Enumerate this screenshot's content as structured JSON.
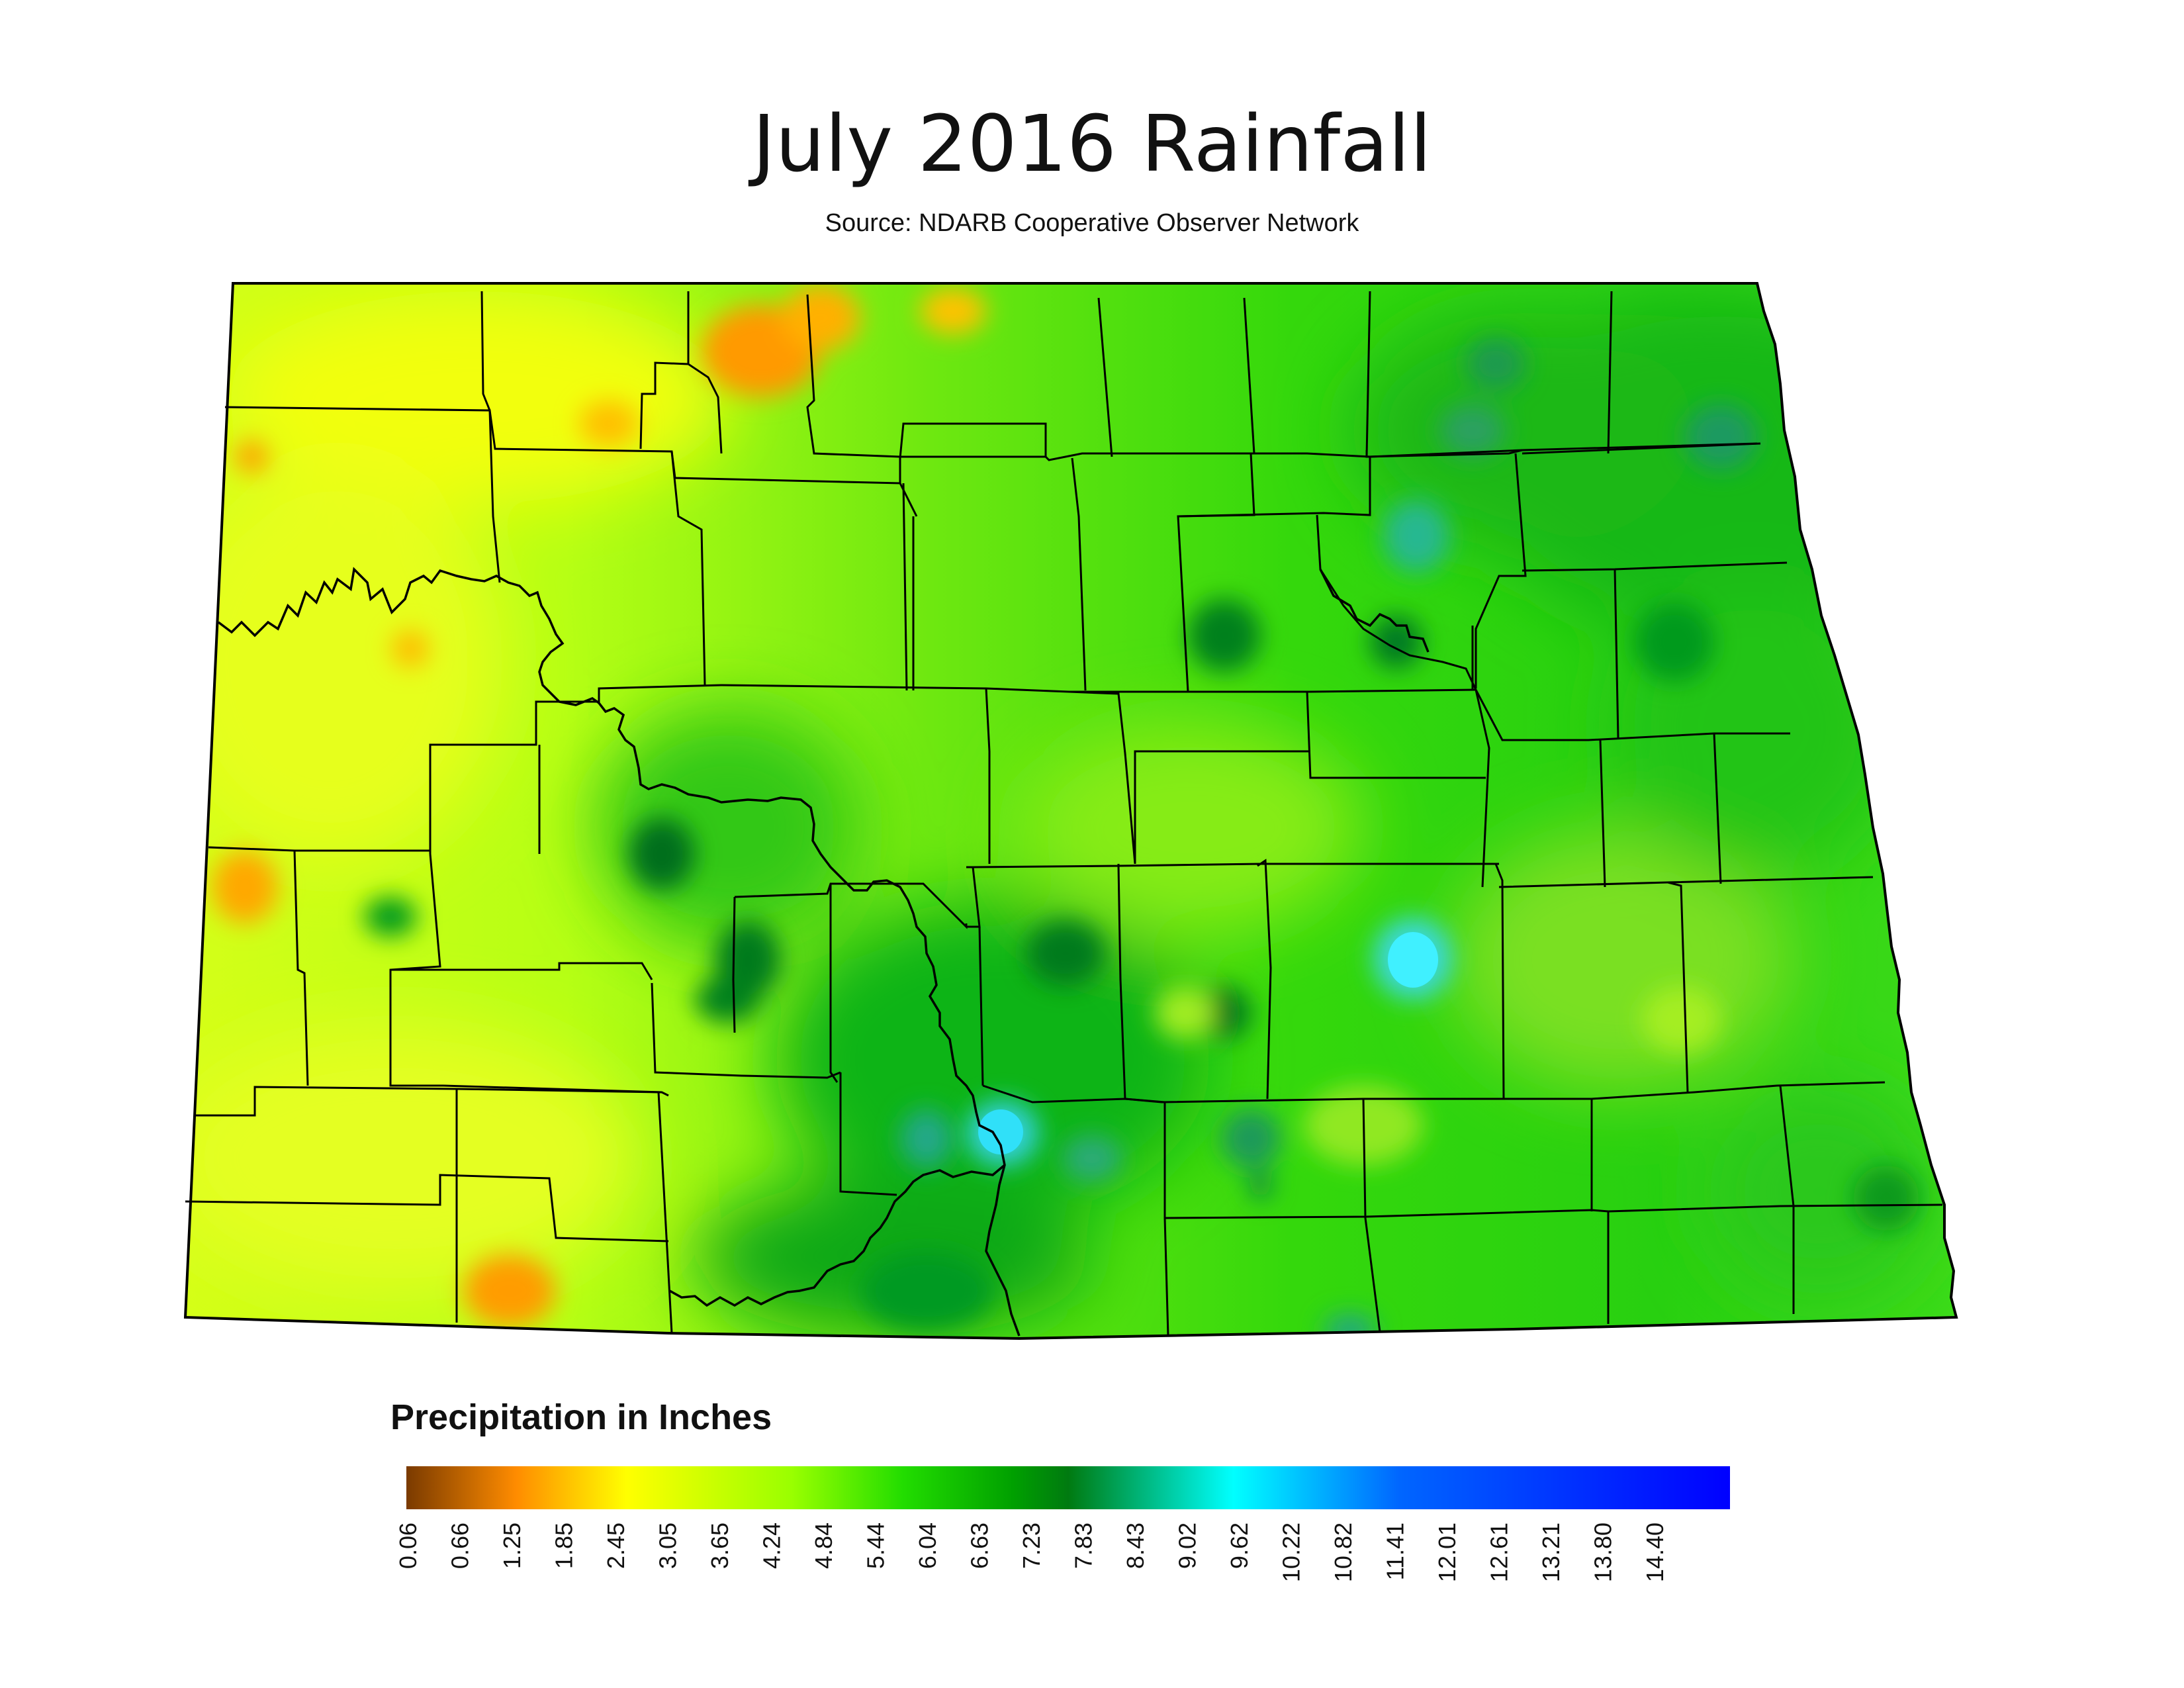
{
  "map": {
    "title": "July 2016 Rainfall",
    "subtitle": "Source: NDARB Cooperative Observer Network",
    "region": "North Dakota",
    "boundary_color": "#000000"
  },
  "legend": {
    "title": "Precipitation in Inches",
    "ticks": [
      "0.06",
      "0.66",
      "1.25",
      "1.85",
      "2.45",
      "3.05",
      "3.65",
      "4.24",
      "4.84",
      "5.44",
      "6.04",
      "6.63",
      "7.23",
      "7.83",
      "8.43",
      "9.02",
      "9.62",
      "10.22",
      "10.82",
      "11.41",
      "12.01",
      "12.61",
      "13.21",
      "13.80",
      "14.40"
    ],
    "color_stops": [
      {
        "value": 0.06,
        "color": "#7a3a00"
      },
      {
        "value": 1.25,
        "color": "#ff8c00"
      },
      {
        "value": 2.45,
        "color": "#ffff00"
      },
      {
        "value": 4.24,
        "color": "#99ff00"
      },
      {
        "value": 5.44,
        "color": "#22dd00"
      },
      {
        "value": 6.63,
        "color": "#00a000"
      },
      {
        "value": 7.23,
        "color": "#007a10"
      },
      {
        "value": 9.02,
        "color": "#00ffff"
      },
      {
        "value": 10.82,
        "color": "#0066ff"
      },
      {
        "value": 14.4,
        "color": "#0000ff"
      }
    ]
  }
}
